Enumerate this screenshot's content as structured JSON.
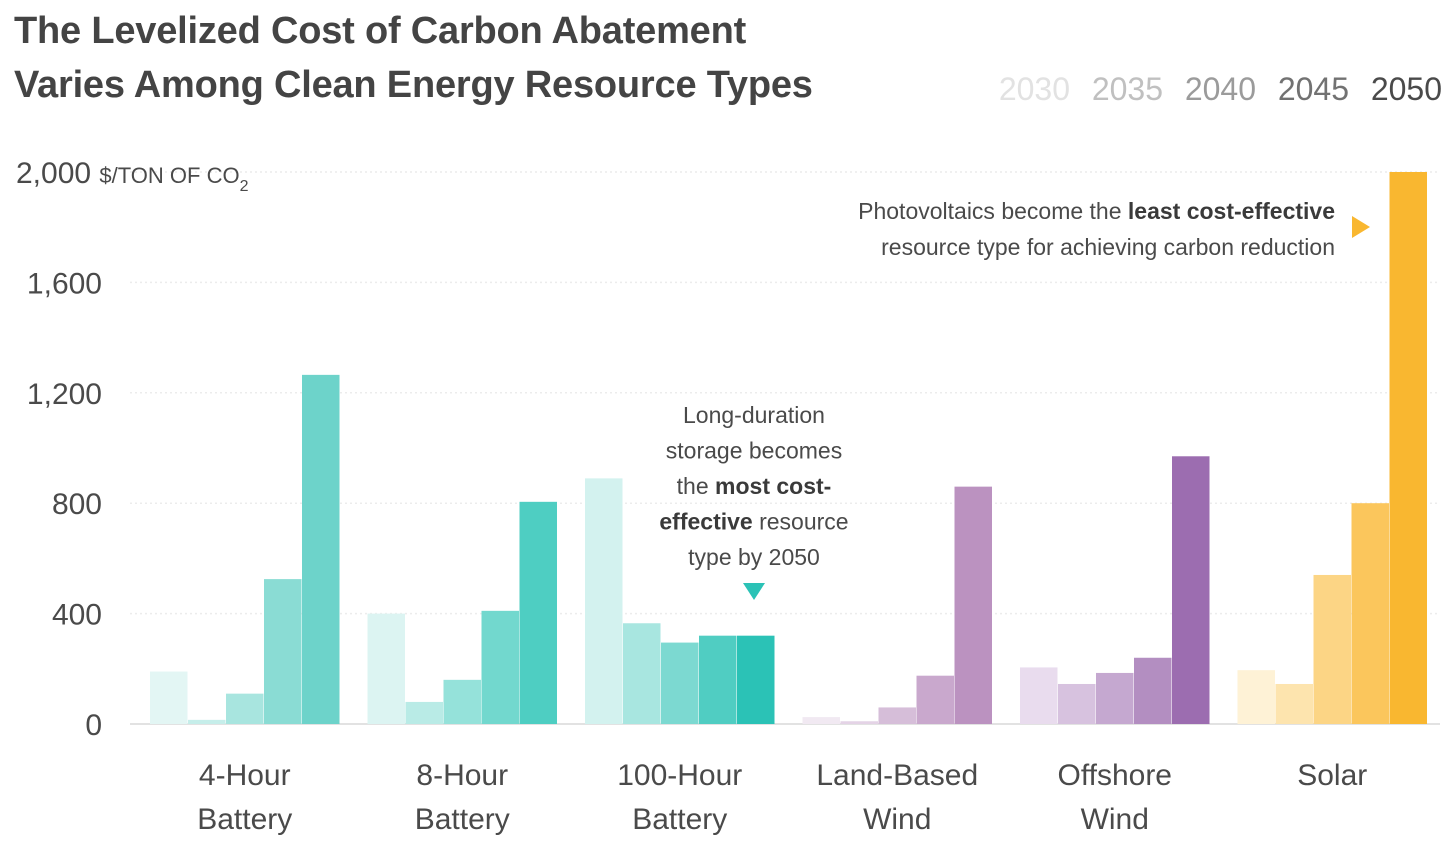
{
  "header": {
    "title_line1": "The Levelized Cost of Carbon Abatement",
    "title_line2": "Varies Among Clean Energy Resource Types"
  },
  "chart_data": {
    "type": "bar",
    "title": "The Levelized Cost of Carbon Abatement Varies Among Clean Energy Resource Types",
    "ylabel_value": "2,000",
    "ylabel_unit": "$/TON OF CO",
    "ylabel_unit_sub": "2",
    "ylim": [
      0,
      2000
    ],
    "yticks": [
      0,
      400,
      800,
      1200,
      1600,
      2000
    ],
    "ytick_labels": [
      "0",
      "400",
      "800",
      "1,200",
      "1,600"
    ],
    "legend_position": "top-right",
    "categories": [
      {
        "line1": "4-Hour",
        "line2": "Battery"
      },
      {
        "line1": "8-Hour",
        "line2": "Battery"
      },
      {
        "line1": "100-Hour",
        "line2": "Battery"
      },
      {
        "line1": "Land-Based",
        "line2": "Wind"
      },
      {
        "line1": "Offshore",
        "line2": "Wind"
      },
      {
        "line1": "Solar",
        "line2": ""
      }
    ],
    "series": [
      {
        "name": "2030",
        "values": [
          190,
          400,
          890,
          25,
          205,
          195
        ]
      },
      {
        "name": "2035",
        "values": [
          15,
          80,
          365,
          10,
          145,
          145
        ]
      },
      {
        "name": "2040",
        "values": [
          110,
          160,
          295,
          60,
          185,
          540
        ]
      },
      {
        "name": "2045",
        "values": [
          525,
          410,
          320,
          175,
          240,
          800
        ]
      },
      {
        "name": "2050",
        "values": [
          1265,
          805,
          320,
          860,
          970,
          2000
        ]
      }
    ],
    "palettes": [
      [
        "#e3f6f4",
        "#c6eeea",
        "#a8e5df",
        "#8adcd4",
        "#6dd3ca"
      ],
      [
        "#dcf4f2",
        "#b9ebe6",
        "#95e2da",
        "#72d8ce",
        "#4ecec2"
      ],
      [
        "#d3f2ef",
        "#a8e6e0",
        "#7cd9d1",
        "#50cdc2",
        "#2bc2b6"
      ],
      [
        "#f1e9f2",
        "#e4d3e6",
        "#d6bed9",
        "#c9a8cd",
        "#bb92c0"
      ],
      [
        "#e9dcee",
        "#d7c2df",
        "#c5a8d0",
        "#b38ec1",
        "#9c6db0"
      ],
      [
        "#fef2d6",
        "#fde4ae",
        "#fcd585",
        "#fbc65c",
        "#f9b730"
      ]
    ],
    "legend_colors": [
      "#e2e2e2",
      "#c0c0c0",
      "#9b9b9b",
      "#727272",
      "#4a4a4a"
    ],
    "annotations": [
      {
        "lines": [
          [
            {
              "text": "Long-duration",
              "bold": false
            }
          ],
          [
            {
              "text": "storage becomes",
              "bold": false
            }
          ],
          [
            {
              "text": "the ",
              "bold": false
            },
            {
              "text": "most cost-",
              "bold": true
            }
          ],
          [
            {
              "text": "effective",
              "bold": true
            },
            {
              "text": " resource",
              "bold": false
            }
          ],
          [
            {
              "text": "type by 2050",
              "bold": false
            }
          ]
        ],
        "marker_color": "#2bc2b6"
      },
      {
        "lines": [
          [
            {
              "text": "Photovoltaics become the ",
              "bold": false
            },
            {
              "text": "least cost-effective",
              "bold": true
            }
          ],
          [
            {
              "text": "resource type for achieving carbon reduction",
              "bold": false
            }
          ]
        ],
        "marker_color": "#f9b730"
      }
    ]
  }
}
